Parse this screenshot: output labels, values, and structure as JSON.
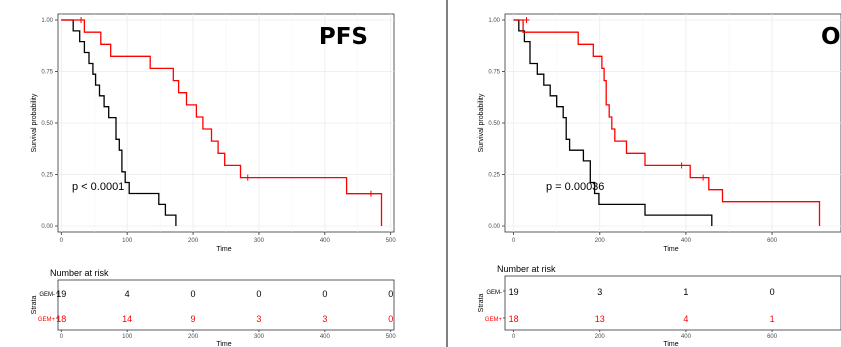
{
  "chart_data": [
    {
      "type": "line",
      "title": "PFS",
      "xlabel": "Time",
      "ylabel": "Survival probability",
      "xlim": [
        -5,
        505
      ],
      "ylim": [
        0,
        1
      ],
      "x_ticks": [
        "0",
        "100",
        "200",
        "300",
        "400",
        "500"
      ],
      "y_ticks": [
        "0.00",
        "0.25",
        "0.50",
        "0.75",
        "1.00"
      ],
      "grid": true,
      "annotation": "p < 0.0001",
      "series": [
        {
          "name": "GEM-",
          "color": "#000000",
          "points": [
            [
              0,
              1.0
            ],
            [
              18,
              1.0
            ],
            [
              18,
              0.947
            ],
            [
              28,
              0.947
            ],
            [
              28,
              0.895
            ],
            [
              35,
              0.895
            ],
            [
              35,
              0.842
            ],
            [
              42,
              0.842
            ],
            [
              42,
              0.789
            ],
            [
              48,
              0.789
            ],
            [
              48,
              0.737
            ],
            [
              52,
              0.737
            ],
            [
              52,
              0.684
            ],
            [
              58,
              0.684
            ],
            [
              58,
              0.632
            ],
            [
              65,
              0.632
            ],
            [
              65,
              0.579
            ],
            [
              72,
              0.579
            ],
            [
              72,
              0.526
            ],
            [
              83,
              0.526
            ],
            [
              83,
              0.421
            ],
            [
              88,
              0.421
            ],
            [
              88,
              0.368
            ],
            [
              92,
              0.368
            ],
            [
              92,
              0.263
            ],
            [
              97,
              0.263
            ],
            [
              97,
              0.211
            ],
            [
              103,
              0.211
            ],
            [
              103,
              0.158
            ],
            [
              148,
              0.158
            ],
            [
              148,
              0.105
            ],
            [
              158,
              0.105
            ],
            [
              158,
              0.053
            ],
            [
              174,
              0.053
            ],
            [
              174,
              0.0
            ]
          ],
          "censored": []
        },
        {
          "name": "GEM+",
          "color": "#ff0000",
          "points": [
            [
              0,
              1.0
            ],
            [
              35,
              1.0
            ],
            [
              35,
              0.941
            ],
            [
              60,
              0.941
            ],
            [
              60,
              0.882
            ],
            [
              75,
              0.882
            ],
            [
              75,
              0.824
            ],
            [
              135,
              0.824
            ],
            [
              135,
              0.765
            ],
            [
              170,
              0.765
            ],
            [
              170,
              0.706
            ],
            [
              178,
              0.706
            ],
            [
              178,
              0.647
            ],
            [
              190,
              0.647
            ],
            [
              190,
              0.588
            ],
            [
              205,
              0.588
            ],
            [
              205,
              0.529
            ],
            [
              215,
              0.529
            ],
            [
              215,
              0.471
            ],
            [
              228,
              0.471
            ],
            [
              228,
              0.412
            ],
            [
              238,
              0.412
            ],
            [
              238,
              0.353
            ],
            [
              248,
              0.353
            ],
            [
              248,
              0.294
            ],
            [
              272,
              0.294
            ],
            [
              272,
              0.235
            ],
            [
              433,
              0.235
            ],
            [
              433,
              0.157
            ],
            [
              486,
              0.157
            ],
            [
              486,
              0.0
            ]
          ],
          "censored": [
            [
              30,
              1.0
            ],
            [
              283,
              0.235
            ],
            [
              470,
              0.157
            ]
          ]
        }
      ],
      "risk_table": {
        "title": "Number at risk",
        "strata_label": "Strata",
        "times": [
          "0",
          "100",
          "200",
          "300",
          "400",
          "500"
        ],
        "rows": [
          {
            "name": "GEM-",
            "values": [
              "19",
              "4",
              "0",
              "0",
              "0",
              "0"
            ]
          },
          {
            "name": "GEM+",
            "values": [
              "18",
              "14",
              "9",
              "3",
              "3",
              "0"
            ]
          }
        ],
        "xlabel": "Time"
      }
    },
    {
      "type": "line",
      "title": "O",
      "xlabel": "Time",
      "ylabel": "Survival probability",
      "xlim": [
        -20,
        760
      ],
      "ylim": [
        0,
        1
      ],
      "x_ticks": [
        "0",
        "200",
        "400",
        "600"
      ],
      "y_ticks": [
        "0.00",
        "0.25",
        "0.50",
        "0.75",
        "1.00"
      ],
      "grid": true,
      "annotation": "p = 0.00036",
      "series": [
        {
          "name": "GEM-",
          "color": "#000000",
          "points": [
            [
              0,
              1.0
            ],
            [
              12,
              1.0
            ],
            [
              12,
              0.947
            ],
            [
              25,
              0.947
            ],
            [
              25,
              0.895
            ],
            [
              38,
              0.895
            ],
            [
              38,
              0.789
            ],
            [
              55,
              0.789
            ],
            [
              55,
              0.737
            ],
            [
              70,
              0.737
            ],
            [
              70,
              0.684
            ],
            [
              85,
              0.684
            ],
            [
              85,
              0.632
            ],
            [
              100,
              0.632
            ],
            [
              100,
              0.579
            ],
            [
              115,
              0.579
            ],
            [
              115,
              0.526
            ],
            [
              122,
              0.526
            ],
            [
              122,
              0.421
            ],
            [
              130,
              0.421
            ],
            [
              130,
              0.368
            ],
            [
              162,
              0.368
            ],
            [
              162,
              0.316
            ],
            [
              178,
              0.316
            ],
            [
              178,
              0.211
            ],
            [
              188,
              0.211
            ],
            [
              188,
              0.158
            ],
            [
              198,
              0.158
            ],
            [
              198,
              0.105
            ],
            [
              305,
              0.105
            ],
            [
              305,
              0.053
            ],
            [
              460,
              0.053
            ],
            [
              460,
              0.0
            ]
          ],
          "censored": []
        },
        {
          "name": "GEM+",
          "color": "#ff0000",
          "points": [
            [
              0,
              1.0
            ],
            [
              22,
              1.0
            ],
            [
              22,
              0.941
            ],
            [
              150,
              0.941
            ],
            [
              150,
              0.882
            ],
            [
              185,
              0.882
            ],
            [
              185,
              0.824
            ],
            [
              205,
              0.824
            ],
            [
              205,
              0.765
            ],
            [
              210,
              0.765
            ],
            [
              210,
              0.706
            ],
            [
              215,
              0.706
            ],
            [
              215,
              0.588
            ],
            [
              222,
              0.588
            ],
            [
              222,
              0.529
            ],
            [
              228,
              0.529
            ],
            [
              228,
              0.471
            ],
            [
              235,
              0.471
            ],
            [
              235,
              0.412
            ],
            [
              262,
              0.412
            ],
            [
              262,
              0.353
            ],
            [
              305,
              0.353
            ],
            [
              305,
              0.294
            ],
            [
              410,
              0.294
            ],
            [
              410,
              0.235
            ],
            [
              453,
              0.235
            ],
            [
              453,
              0.176
            ],
            [
              485,
              0.176
            ],
            [
              485,
              0.118
            ],
            [
              710,
              0.118
            ],
            [
              710,
              0.0
            ]
          ],
          "censored": [
            [
              30,
              1.0
            ],
            [
              390,
              0.294
            ],
            [
              440,
              0.235
            ]
          ]
        }
      ],
      "risk_table": {
        "title": "Number at risk",
        "strata_label": "Strata",
        "times": [
          "0",
          "200",
          "400",
          "600"
        ],
        "rows": [
          {
            "name": "GEM-",
            "values": [
              "19",
              "3",
              "1",
              "0"
            ]
          },
          {
            "name": "GEM+",
            "values": [
              "18",
              "13",
              "4",
              "1"
            ]
          }
        ],
        "xlabel": "Time"
      }
    }
  ]
}
